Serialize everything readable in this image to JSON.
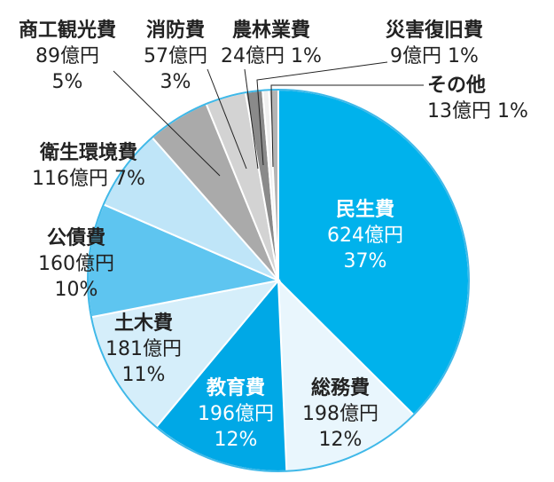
{
  "chart_data": {
    "type": "pie",
    "unit": "億円",
    "slices": [
      {
        "name": "民生費",
        "value": 624,
        "amount": "624億円",
        "pct": "37%",
        "color": "#00b2ec"
      },
      {
        "name": "総務費",
        "value": 198,
        "amount": "198億円",
        "pct": "12%",
        "color": "#e9f6fd"
      },
      {
        "name": "教育費",
        "value": 196,
        "amount": "196億円",
        "pct": "12%",
        "color": "#00a8e6"
      },
      {
        "name": "土木費",
        "value": 181,
        "amount": "181億円",
        "pct": "11%",
        "color": "#d5eefa"
      },
      {
        "name": "公債費",
        "value": 160,
        "amount": "160億円",
        "pct": "10%",
        "color": "#5ec5f0"
      },
      {
        "name": "衛生環境費",
        "value": 116,
        "amount": "116億円",
        "pct": "7%",
        "color": "#bfe5f8"
      },
      {
        "name": "商工観光費",
        "value": 89,
        "amount": "89億円",
        "pct": "5%",
        "color": "#aaaaaa"
      },
      {
        "name": "消防費",
        "value": 57,
        "amount": "57億円",
        "pct": "3%",
        "color": "#d3d3d3"
      },
      {
        "name": "農林業費",
        "value": 24,
        "amount": "24億円",
        "pct": "1%",
        "color": "#8a8a8a"
      },
      {
        "name": "災害復旧費",
        "value": 9,
        "amount": "9億円",
        "pct": "1%",
        "color": "#efefef"
      },
      {
        "name": "その他",
        "value": 13,
        "amount": "13億円",
        "pct": "1%",
        "color": "#b4b4b4"
      }
    ]
  }
}
